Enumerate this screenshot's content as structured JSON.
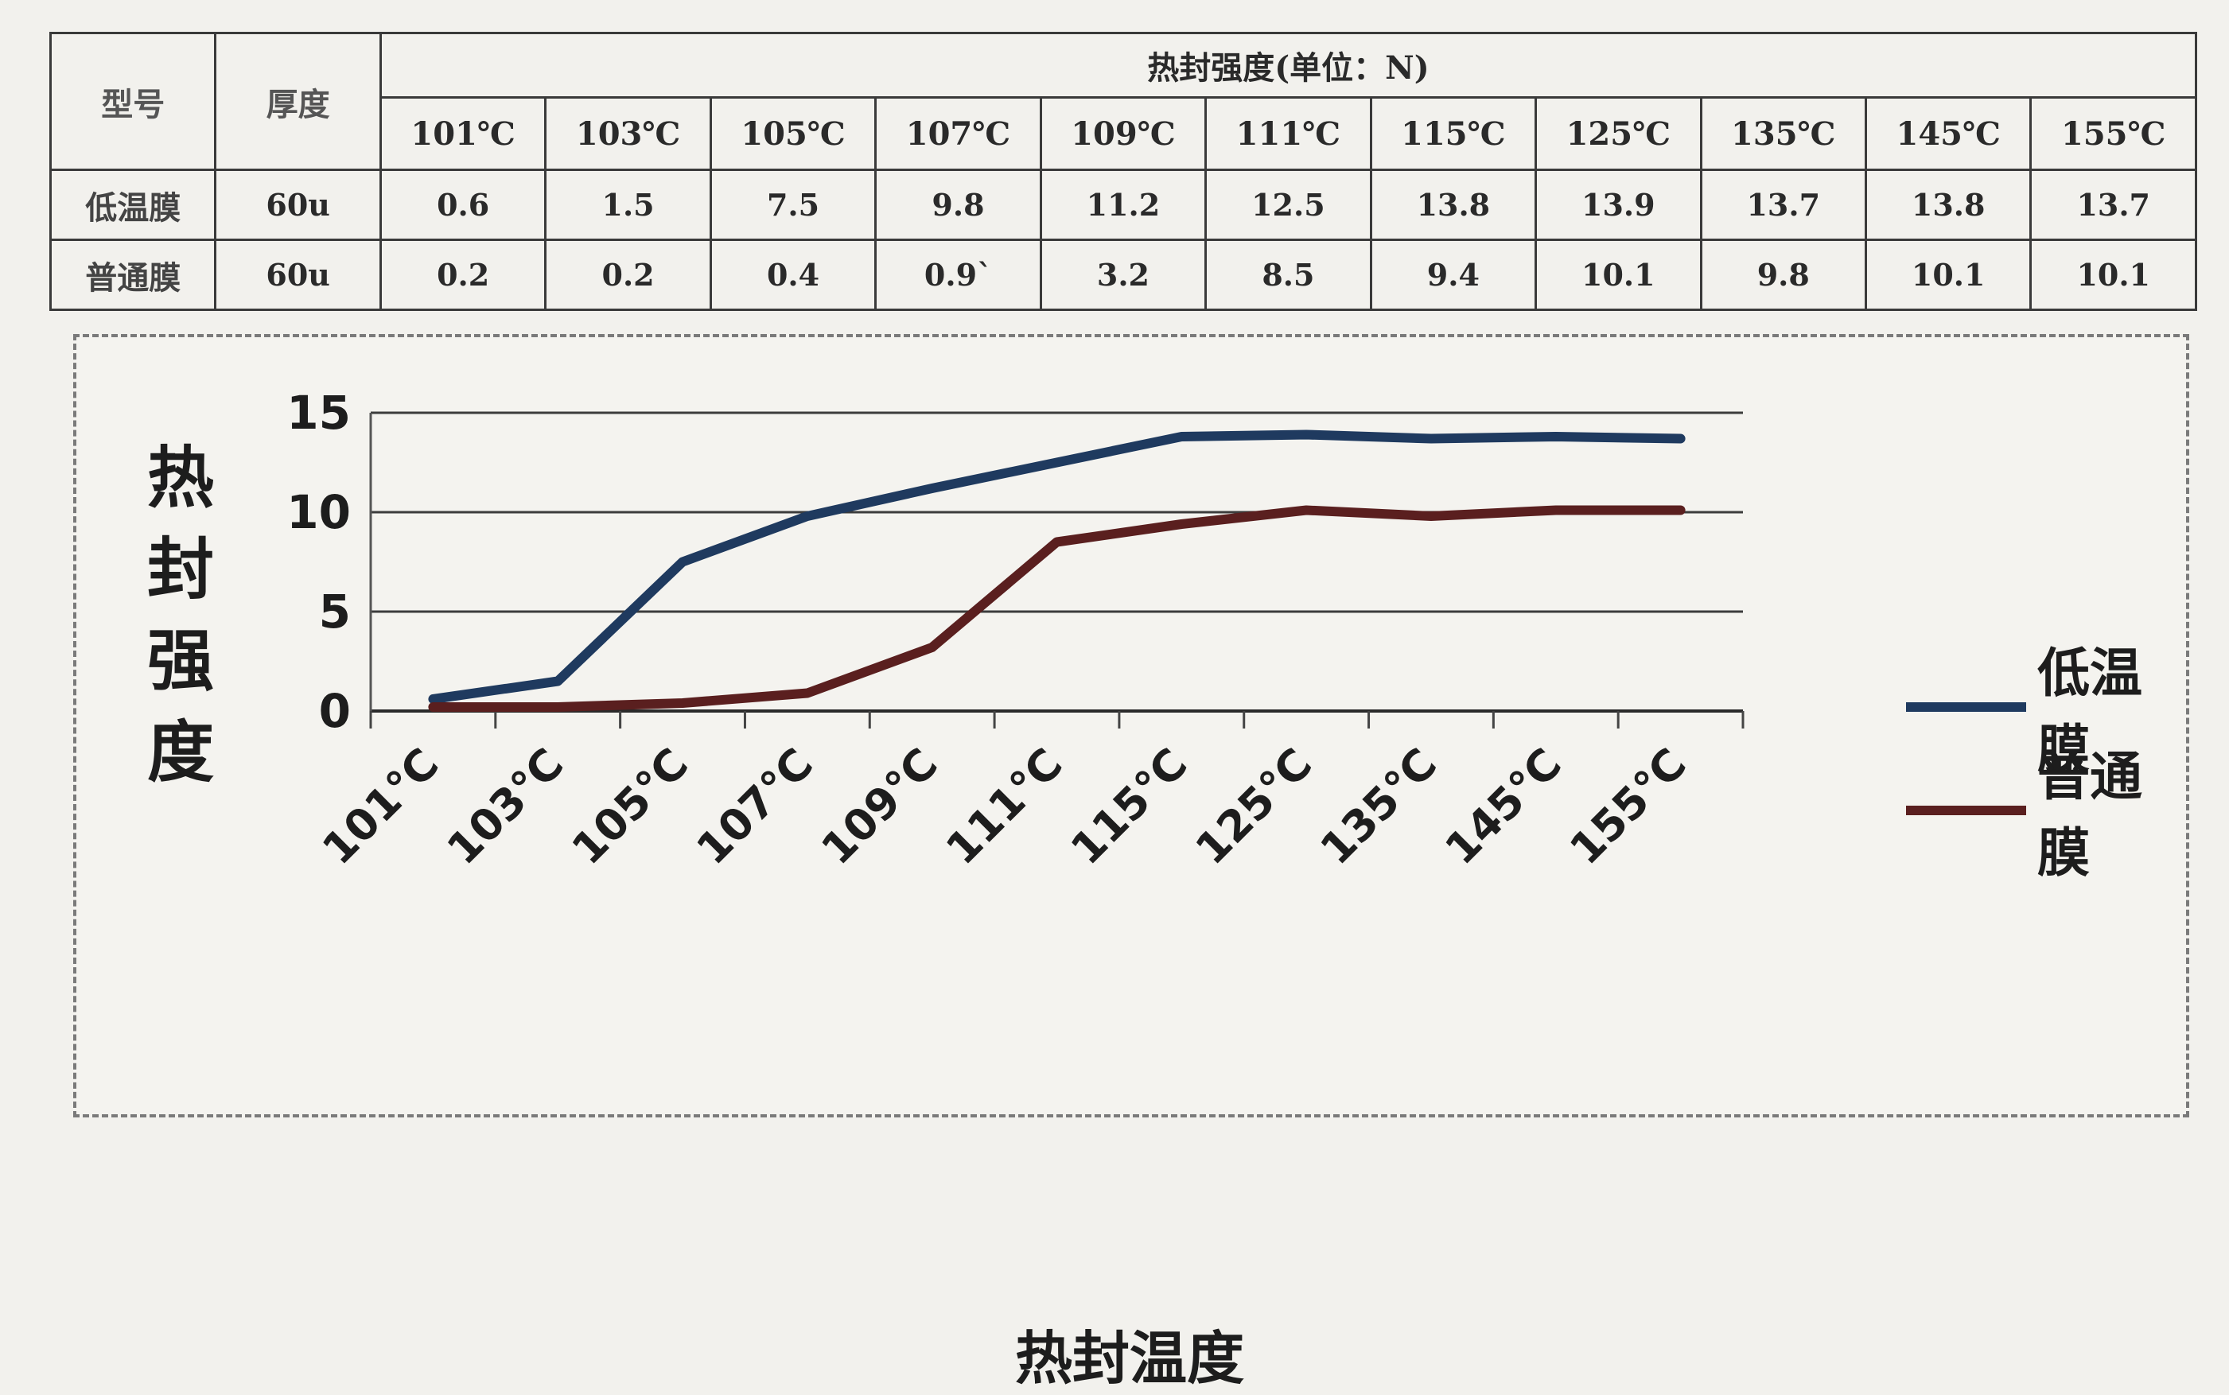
{
  "table": {
    "col_model": "型号",
    "col_thickness": "厚度",
    "header_title": "热封强度(单位：N)",
    "temperatures": [
      "101℃",
      "103℃",
      "105℃",
      "107℃",
      "109℃",
      "111℃",
      "115℃",
      "125℃",
      "135℃",
      "145℃",
      "155℃"
    ],
    "rows": [
      {
        "name": "低温膜",
        "thickness": "60u",
        "values": [
          "0.6",
          "1.5",
          "7.5",
          "9.8",
          "11.2",
          "12.5",
          "13.8",
          "13.9",
          "13.7",
          "13.8",
          "13.7"
        ]
      },
      {
        "name": "普通膜",
        "thickness": "60u",
        "values": [
          "0.2",
          "0.2",
          "0.4",
          "0.9`",
          "3.2",
          "8.5",
          "9.4",
          "10.1",
          "9.8",
          "10.1",
          "10.1"
        ]
      }
    ]
  },
  "chart_data": {
    "type": "line",
    "categories": [
      "101℃",
      "103℃",
      "105℃",
      "107℃",
      "109℃",
      "111℃",
      "115℃",
      "125℃",
      "135℃",
      "145℃",
      "155℃"
    ],
    "series": [
      {
        "name": "低温膜",
        "values": [
          0.6,
          1.5,
          7.5,
          9.8,
          11.2,
          12.5,
          13.8,
          13.9,
          13.7,
          13.8,
          13.7
        ],
        "color": "#1f3a5f"
      },
      {
        "name": "普通膜",
        "values": [
          0.2,
          0.2,
          0.4,
          0.9,
          3.2,
          8.5,
          9.4,
          10.1,
          9.8,
          10.1,
          10.1
        ],
        "color": "#5a1f1f"
      }
    ],
    "yticks": [
      "0",
      "5",
      "10",
      "15"
    ],
    "ylim": [
      0,
      15
    ],
    "ylabel": "热封强度",
    "xlabel": "热封温度",
    "grid": true,
    "legend_position": "right"
  }
}
